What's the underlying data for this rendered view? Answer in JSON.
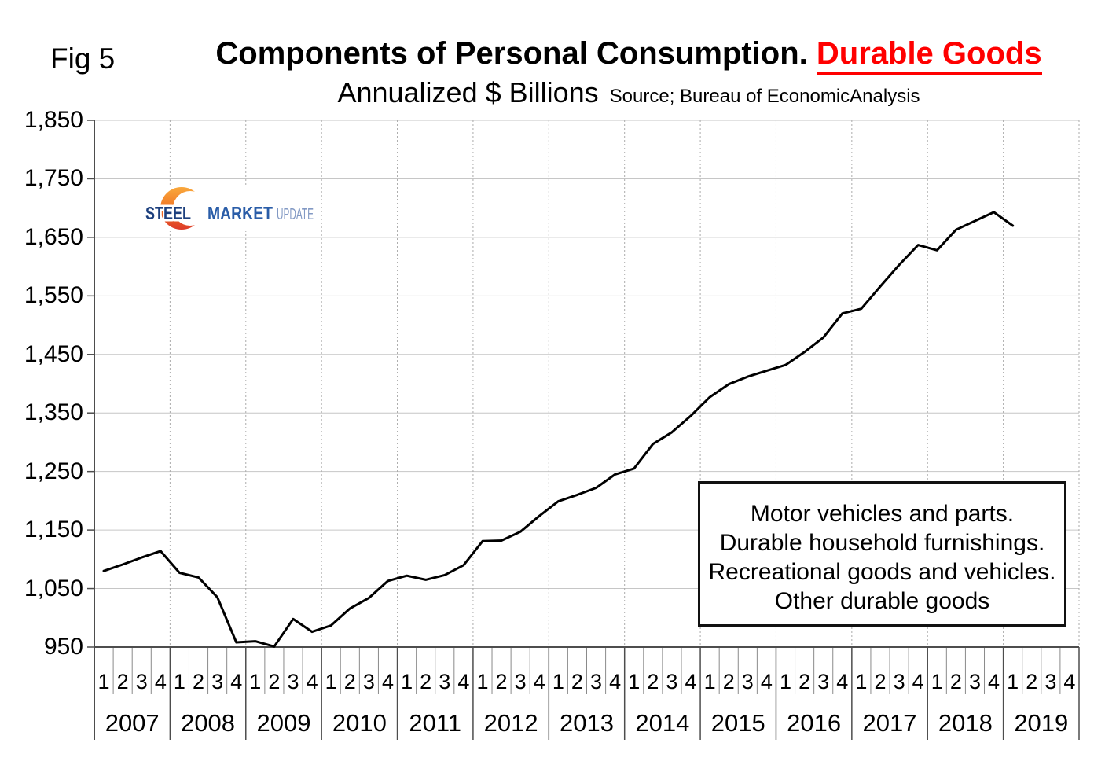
{
  "header": {
    "fig_label": "Fig 5",
    "title_black": "Components of Personal Consumption. ",
    "title_red": "Durable Goods",
    "subtitle": "Annualized $ Billions",
    "source": "Source; Bureau of EconomicAnalysis"
  },
  "logo": {
    "steel": "STEEL",
    "market": "MARKET",
    "update": "UPDATE"
  },
  "colors": {
    "title_highlight": "#FF0000",
    "data_line": "#000000",
    "grid_line": "#c6c6c6",
    "year_dashed_line": "#ababab",
    "axis_line": "#4d4d4d",
    "quarter_separator": "#8a8a8a",
    "legend_border": "#111111",
    "logo_steel_blue": "#1C3F7D",
    "logo_market_blue": "#2A5DA8",
    "logo_update_blue": "#8299C4",
    "logo_crescent_orange": "#F07022"
  },
  "chart_data": {
    "type": "line",
    "title": "Components of Personal Consumption. Durable Goods",
    "subtitle": "Annualized $ Billions",
    "source": "Source; Bureau of EconomicAnalysis",
    "xlabel": "",
    "ylabel": "",
    "ylim": [
      950,
      1850
    ],
    "ytick_interval": 100,
    "ytick_labels": [
      "1,850",
      "1,750",
      "1,650",
      "1,550",
      "1,450",
      "1,350",
      "1,250",
      "1,150",
      "1,050",
      "950"
    ],
    "grid": true,
    "years": [
      "2007",
      "2008",
      "2009",
      "2010",
      "2011",
      "2012",
      "2013",
      "2014",
      "2015",
      "2016",
      "2017",
      "2018",
      "2019"
    ],
    "quarter_labels": [
      "1",
      "2",
      "3",
      "4"
    ],
    "annotation": {
      "position": "center-right",
      "lines": [
        "Motor vehicles and parts.",
        "Durable household furnishings.",
        "Recreational goods and vehicles.",
        "Other durable goods"
      ]
    },
    "series": [
      {
        "name": "Durable goods, annualized $ billions",
        "start": "2007 Q1",
        "end": "2019 Q1",
        "values": [
          1080,
          1091,
          1103,
          1114,
          1077,
          1069,
          1035,
          958,
          960,
          951,
          998,
          976,
          987,
          1016,
          1034,
          1063,
          1072,
          1065,
          1073,
          1090,
          1131,
          1132,
          1147,
          1174,
          1199,
          1210,
          1222,
          1245,
          1255,
          1297,
          1317,
          1345,
          1377,
          1399,
          1412,
          1422,
          1432,
          1454,
          1479,
          1520,
          1528,
          1566,
          1603,
          1637,
          1628,
          1663,
          1678,
          1693,
          1670
        ]
      }
    ]
  }
}
